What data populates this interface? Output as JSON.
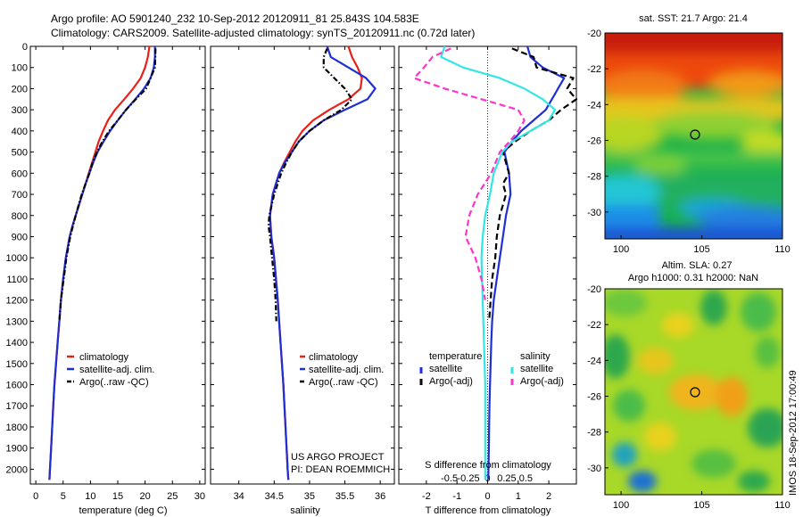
{
  "header": {
    "line1": "Argo profile: AO 5901240_232 10-Sep-2012 20120911_81 25.843S 104.583E",
    "line2": "Climatology: CARS2009. Satellite-adjusted climatology: synTS_20120911.nc (0.72d later)"
  },
  "colors": {
    "climatology": "#e8201a",
    "satellite": "#1f2fd6",
    "argo": "#000000",
    "satellite_salinity": "#33e6e6",
    "argo_salinity": "#ff33cc"
  },
  "chart_data": [
    {
      "type": "line",
      "panel": "temperature",
      "xlabel": "temperature (deg C)",
      "ylabel": "",
      "xlim": [
        -1,
        31
      ],
      "ylim": [
        2070,
        0
      ],
      "xticks": [
        0,
        5,
        10,
        15,
        20,
        25,
        30
      ],
      "yticks": [
        0,
        100,
        200,
        300,
        400,
        500,
        600,
        700,
        800,
        900,
        1000,
        1100,
        1200,
        1300,
        1400,
        1500,
        1600,
        1700,
        1800,
        1900,
        2000
      ],
      "legend_position": "lower-right",
      "series": [
        {
          "name": "climatology",
          "style": "solid",
          "color": "#e8201a",
          "depth": [
            0,
            50,
            100,
            150,
            200,
            250,
            300,
            350,
            400,
            450,
            500,
            550,
            600,
            650,
            700,
            750,
            800,
            850,
            900,
            1000,
            1100,
            1200,
            1300,
            1400,
            1500,
            1600,
            1700,
            1800,
            1900,
            2000,
            2050
          ],
          "x": [
            20.8,
            20.5,
            20.0,
            19.2,
            17.8,
            16.2,
            14.5,
            13.2,
            12.3,
            11.5,
            10.9,
            10.3,
            9.7,
            9.1,
            8.5,
            7.9,
            7.3,
            6.7,
            6.2,
            5.5,
            5.0,
            4.6,
            4.3,
            4.0,
            3.7,
            3.4,
            3.2,
            3.0,
            2.8,
            2.6,
            2.5
          ]
        },
        {
          "name": "satellite-adj. clim.",
          "style": "solid",
          "color": "#1f2fd6",
          "depth": [
            0,
            50,
            100,
            150,
            200,
            250,
            300,
            350,
            400,
            450,
            500,
            550,
            600,
            650,
            700,
            750,
            800,
            850,
            900,
            1000,
            1100,
            1200,
            1300,
            1400,
            1500,
            1600,
            1700,
            1800,
            1900,
            2000,
            2050
          ],
          "x": [
            21.8,
            21.8,
            21.6,
            21.0,
            19.8,
            18.2,
            16.5,
            15.0,
            13.6,
            12.4,
            11.3,
            10.5,
            9.8,
            9.1,
            8.5,
            7.9,
            7.3,
            6.7,
            6.2,
            5.5,
            5.0,
            4.6,
            4.3,
            4.0,
            3.7,
            3.4,
            3.2,
            3.0,
            2.8,
            2.6,
            2.5
          ]
        },
        {
          "name": "Argo(..raw -QC)",
          "style": "dashdot",
          "color": "#000000",
          "depth": [
            10,
            100,
            200,
            250,
            300,
            350,
            400,
            450,
            500,
            550,
            600,
            700,
            800,
            900,
            1000,
            1100,
            1200,
            1300
          ],
          "x": [
            21.9,
            21.8,
            20.2,
            18.3,
            16.5,
            15.0,
            13.4,
            12.2,
            11.2,
            10.4,
            9.8,
            8.4,
            7.3,
            6.3,
            5.6,
            5.1,
            4.6,
            4.3
          ]
        }
      ]
    },
    {
      "type": "line",
      "panel": "salinity",
      "xlabel": "salinity",
      "ylabel": "",
      "xlim": [
        33.6,
        36.2
      ],
      "ylim": [
        2070,
        0
      ],
      "xticks": [
        34,
        34.5,
        35,
        35.5,
        36
      ],
      "legend_position": "lower-right",
      "series": [
        {
          "name": "climatology",
          "style": "solid",
          "color": "#e8201a",
          "depth": [
            0,
            50,
            100,
            150,
            200,
            250,
            300,
            350,
            400,
            450,
            500,
            550,
            600,
            700,
            800,
            900,
            1000,
            1200,
            1400,
            1600,
            1800,
            2000,
            2050
          ],
          "x": [
            35.55,
            35.6,
            35.68,
            35.74,
            35.72,
            35.55,
            35.28,
            35.05,
            34.9,
            34.8,
            34.72,
            34.64,
            34.57,
            34.48,
            34.44,
            34.46,
            34.5,
            34.55,
            34.59,
            34.63,
            34.66,
            34.69,
            34.7
          ]
        },
        {
          "name": "satellite-adj. clim.",
          "style": "solid",
          "color": "#1f2fd6",
          "depth": [
            0,
            50,
            100,
            150,
            200,
            250,
            300,
            350,
            400,
            450,
            500,
            550,
            600,
            700,
            800,
            900,
            1000,
            1200,
            1400,
            1600,
            1800,
            2000,
            2050
          ],
          "x": [
            35.25,
            35.3,
            35.55,
            35.8,
            35.93,
            35.82,
            35.5,
            35.2,
            35.0,
            34.85,
            34.75,
            34.65,
            34.57,
            34.48,
            34.44,
            34.46,
            34.5,
            34.55,
            34.59,
            34.63,
            34.66,
            34.69,
            34.7
          ]
        },
        {
          "name": "Argo(..raw -QC)",
          "style": "dashdot",
          "color": "#000000",
          "depth": [
            10,
            50,
            100,
            150,
            200,
            250,
            300,
            350,
            400,
            450,
            500,
            550,
            600,
            700,
            800,
            850,
            900,
            1000,
            1100,
            1200,
            1300
          ],
          "x": [
            35.25,
            35.2,
            35.2,
            35.35,
            35.5,
            35.6,
            35.45,
            35.2,
            35.0,
            34.85,
            34.75,
            34.67,
            34.6,
            34.5,
            34.43,
            34.42,
            34.44,
            34.47,
            34.5,
            34.52,
            34.53
          ]
        }
      ]
    },
    {
      "type": "line",
      "panel": "difference",
      "xlabel": "T difference from climatology",
      "xlabel_top": "S difference from climatology",
      "ylabel": "",
      "xlim": [
        -2.9,
        2.9
      ],
      "ylim": [
        2070,
        0
      ],
      "xticks": [
        -2,
        -1,
        0,
        1,
        2
      ],
      "xticks_labels": [
        "-2",
        "-1",
        "0",
        "1",
        "2"
      ],
      "xticks_s": [
        -0.5,
        -0.25,
        0,
        0.25,
        0.5
      ],
      "xticks_s_labels": [
        "-0.5",
        "-0.25",
        "0",
        "0.25",
        "0.5"
      ],
      "zero_line": "dotted",
      "legend": {
        "temperature_heading": "temperature",
        "salinity_heading": "salinity",
        "entries": [
          "satellite",
          "Argo(-adj)",
          "satellite",
          "Argo(-adj)"
        ]
      },
      "series": [
        {
          "name": "satellite",
          "group": "temperature",
          "style": "solid",
          "color": "#1f2fd6",
          "depth": [
            0,
            50,
            100,
            150,
            200,
            250,
            300,
            350,
            400,
            450,
            500,
            600,
            700,
            800,
            900,
            1000,
            1100,
            1200,
            1300,
            1400,
            1500,
            1600,
            1700,
            1800,
            1900,
            2000,
            2050
          ],
          "x": [
            1.3,
            1.4,
            1.8,
            2.5,
            2.3,
            2.1,
            1.9,
            1.5,
            1.1,
            0.8,
            0.55,
            0.7,
            0.75,
            0.6,
            0.5,
            0.4,
            0.3,
            0.2,
            0.15,
            0.12,
            0.1,
            0.08,
            0.06,
            0.05,
            0.04,
            0.03,
            0.02
          ]
        },
        {
          "name": "Argo(-adj)",
          "group": "temperature",
          "style": "dashed",
          "color": "#000000",
          "depth": [
            10,
            50,
            100,
            150,
            200,
            250,
            300,
            350,
            400,
            450,
            500,
            550,
            600,
            650,
            700,
            750,
            800,
            850,
            900,
            1000,
            1100,
            1200,
            1300
          ],
          "x": [
            0.8,
            1.5,
            1.6,
            2.8,
            2.6,
            2.9,
            2.4,
            2.0,
            1.4,
            0.9,
            0.5,
            0.6,
            0.7,
            0.5,
            0.6,
            0.5,
            0.4,
            0.35,
            0.3,
            0.25,
            0.15,
            0.1,
            0.05
          ]
        },
        {
          "name": "satellite",
          "group": "salinity",
          "style": "solid",
          "color": "#33e6e6",
          "depth": [
            0,
            50,
            100,
            150,
            200,
            250,
            300,
            350,
            400,
            450,
            500,
            600,
            700,
            800,
            900,
            1000,
            1200,
            1400,
            1600,
            1800,
            2000,
            2050
          ],
          "x": [
            -0.35,
            -0.38,
            -0.2,
            0.1,
            0.3,
            0.45,
            0.55,
            0.5,
            0.35,
            0.2,
            0.12,
            0.05,
            0.02,
            -0.02,
            -0.04,
            -0.05,
            -0.04,
            -0.03,
            -0.02,
            -0.02,
            -0.02,
            -0.02
          ]
        },
        {
          "name": "Argo(-adj)",
          "group": "salinity",
          "style": "dashed",
          "color": "#ff33cc",
          "depth": [
            10,
            50,
            100,
            150,
            200,
            250,
            300,
            350,
            400,
            450,
            500,
            600,
            700,
            800,
            900,
            1000,
            1100,
            1200
          ],
          "x": [
            -0.3,
            -0.45,
            -0.52,
            -0.6,
            -0.35,
            -0.05,
            0.25,
            0.3,
            0.25,
            0.18,
            0.1,
            0.03,
            -0.08,
            -0.15,
            -0.18,
            -0.1,
            -0.05,
            -0.02
          ]
        }
      ]
    },
    {
      "type": "heatmap",
      "panel": "sst_map",
      "title": "sat. SST: 21.7 Argo: 21.4",
      "xlim": [
        99,
        110
      ],
      "ylim": [
        -31.5,
        -20
      ],
      "xticks": [
        100,
        105,
        110
      ],
      "yticks": [
        -20,
        -22,
        -24,
        -26,
        -28,
        -30
      ],
      "yticks_labels": [
        "-20",
        "-22",
        "-24",
        "-26",
        "-28",
        "-30"
      ],
      "marker": {
        "lon": 104.583,
        "lat": -25.843
      },
      "colormap": "jet"
    },
    {
      "type": "heatmap",
      "panel": "sla_map",
      "title": "Altim. SLA: 0.27",
      "subtitle": "Argo h1000: 0.31 h2000: NaN",
      "xlim": [
        99,
        110
      ],
      "ylim": [
        -31.5,
        -20
      ],
      "xticks": [
        100,
        105,
        110
      ],
      "yticks": [
        -20,
        -22,
        -24,
        -26,
        -28,
        -30
      ],
      "yticks_labels": [
        "-20",
        "-22",
        "-24",
        "-26",
        "-28",
        "-30"
      ],
      "marker": {
        "lon": 104.583,
        "lat": -25.843
      },
      "colormap": "jet"
    }
  ],
  "annotations": {
    "project": "US ARGO PROJECT",
    "pi": "PI: DEAN ROEMMICH",
    "credit": "IMOS 18-Sep-2012 17:00:49"
  }
}
